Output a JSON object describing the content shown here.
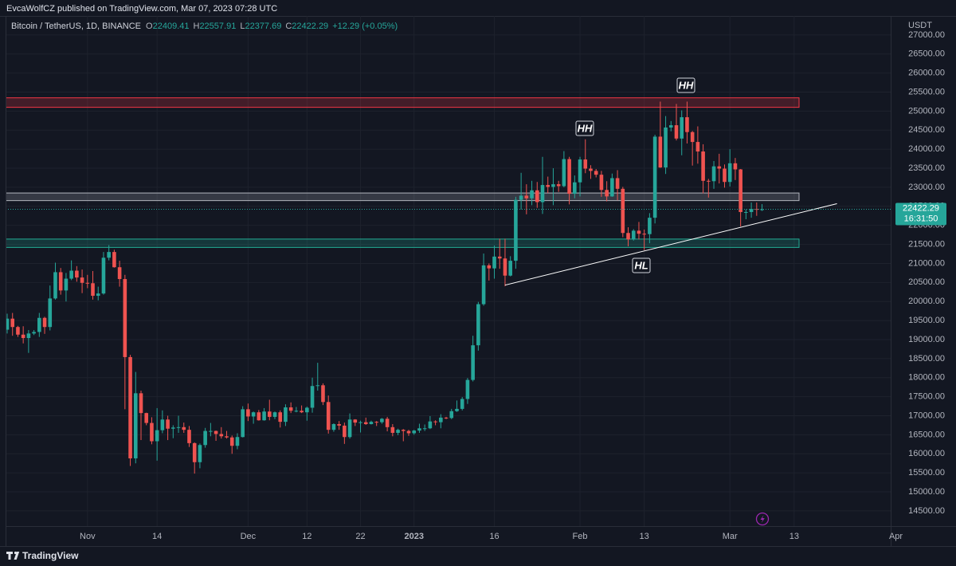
{
  "header": {
    "byline": "EvcaWolfCZ published on TradingView.com, Mar 07, 2023 07:28 UTC"
  },
  "chart_data": {
    "type": "candlestick",
    "symbol": "Bitcoin / TetherUS, 1D, BINANCE",
    "legend": {
      "o": "O",
      "h": "H",
      "l": "L",
      "c": "C",
      "change": "+12.29 (+0.05%)"
    },
    "categories": [
      null,
      null,
      null,
      null,
      null,
      null,
      null,
      null,
      null,
      null,
      null,
      null,
      null,
      null,
      null,
      "Nov",
      null,
      null,
      null,
      null,
      null,
      null,
      null,
      null,
      null,
      null,
      null,
      null,
      "14",
      null,
      null,
      null,
      null,
      null,
      null,
      null,
      null,
      null,
      null,
      null,
      null,
      null,
      null,
      null,
      null,
      "Dec",
      null,
      null,
      null,
      null,
      null,
      null,
      null,
      null,
      null,
      null,
      "12",
      null,
      null,
      null,
      null,
      null,
      null,
      null,
      null,
      null,
      "22",
      null,
      null,
      null,
      null,
      null,
      null,
      null,
      null,
      null,
      "2023",
      null,
      null,
      null,
      null,
      null,
      null,
      null,
      null,
      null,
      null,
      null,
      null,
      null,
      null,
      "16",
      null,
      null,
      null,
      null,
      null,
      null,
      null,
      null,
      null,
      null,
      null,
      null,
      null,
      null,
      null,
      "Feb",
      null,
      null,
      null,
      null,
      null,
      null,
      null,
      null,
      null,
      null,
      null,
      "13",
      null,
      null,
      null,
      null,
      null,
      null,
      null,
      null,
      null,
      null,
      null,
      null,
      null,
      null,
      null,
      "Mar",
      null,
      null,
      null,
      null,
      null,
      null,
      null,
      null,
      null,
      null,
      null,
      "13",
      null,
      null,
      null,
      null,
      null,
      null,
      null,
      null,
      null,
      null,
      null,
      null,
      null,
      null,
      null,
      null,
      null,
      null,
      "Apr"
    ],
    "open": [
      19260,
      19550,
      19330,
      19130,
      19040,
      19160,
      19200,
      19570,
      19330,
      20080,
      20770,
      20290,
      20600,
      20810,
      20630,
      20490,
      20480,
      20150,
      20210,
      21150,
      21300,
      20900,
      20590,
      18540,
      15880,
      17590,
      17070,
      16810,
      16330,
      16620,
      16900,
      16660,
      16690,
      16700,
      16630,
      16280,
      15780,
      16230,
      16600,
      16600,
      16520,
      16460,
      16430,
      16210,
      16440,
      17170,
      16980,
      17090,
      16880,
      17110,
      16970,
      17090,
      16840,
      17220,
      17130,
      17130,
      17090,
      17210,
      17780,
      17800,
      17360,
      16630,
      16780,
      16740,
      16440,
      16900,
      16820,
      16830,
      16780,
      16840,
      16830,
      16920,
      16700,
      16550,
      16630,
      16600,
      16540,
      16610,
      16670,
      16670,
      16850,
      16830,
      16950,
      16940,
      17120,
      17180,
      17440,
      17940,
      18850,
      19930,
      20950,
      20870,
      21180,
      21130,
      20680,
      21070,
      22670,
      22780,
      22710,
      22920,
      22610,
      23060,
      23010,
      23080,
      23030,
      23740,
      22830,
      23130,
      23730,
      23490,
      23430,
      23330,
      22930,
      22760,
      23240,
      22960,
      21800,
      21630,
      21860,
      21780,
      21770,
      22200,
      24330,
      23520,
      24570,
      24630,
      24280,
      24840,
      24450,
      24190,
      23940,
      23170,
      23160,
      23550,
      23490,
      23140,
      23630,
      23470,
      22350,
      22350,
      22430,
      22409.41,
      null,
      null,
      null,
      null,
      null,
      null,
      null,
      null,
      null,
      null,
      null,
      null,
      null,
      null,
      null,
      null,
      null,
      null,
      null,
      null,
      null,
      null,
      null,
      null,
      null
    ],
    "high": [
      19680,
      19700,
      19360,
      19350,
      19250,
      19250,
      19700,
      19600,
      20420,
      21020,
      20880,
      20750,
      21080,
      20930,
      20840,
      20700,
      20800,
      20390,
      21300,
      21480,
      21360,
      21070,
      20700,
      18600,
      18150,
      17660,
      17080,
      16960,
      17200,
      17140,
      17000,
      16750,
      17000,
      16820,
      16730,
      16300,
      16270,
      16680,
      16810,
      16610,
      16700,
      16600,
      16480,
      16540,
      17250,
      17320,
      17110,
      17150,
      17200,
      17420,
      17110,
      17140,
      17300,
      17350,
      17230,
      17270,
      17240,
      18000,
      18390,
      17850,
      17530,
      16800,
      16860,
      16820,
      17060,
      16910,
      16870,
      16950,
      16870,
      16860,
      16940,
      16970,
      16780,
      16660,
      16650,
      16630,
      16630,
      16790,
      16770,
      16990,
      16880,
      17040,
      16970,
      17180,
      17400,
      17490,
      17990,
      19100,
      19990,
      21260,
      21000,
      21470,
      21650,
      21650,
      21190,
      22750,
      23380,
      23080,
      23170,
      23140,
      23800,
      23280,
      23500,
      23170,
      23950,
      23800,
      23310,
      23800,
      24260,
      23580,
      23480,
      23430,
      23160,
      23360,
      23450,
      23010,
      21950,
      21900,
      22090,
      21890,
      22320,
      24380,
      25250,
      24870,
      24740,
      25190,
      25020,
      25250,
      24480,
      24600,
      24130,
      23220,
      23690,
      23880,
      23600,
      24000,
      23770,
      23480,
      22420,
      22600,
      22600,
      22557.91,
      null,
      null,
      null,
      null,
      null,
      null,
      null,
      null,
      null,
      null,
      null,
      null,
      null,
      null,
      null,
      null,
      null,
      null,
      null,
      null,
      null,
      null,
      null,
      null,
      null
    ],
    "low": [
      19160,
      19100,
      19070,
      18900,
      18650,
      19120,
      19070,
      19150,
      19240,
      20050,
      20180,
      20000,
      20560,
      20520,
      20220,
      20350,
      20050,
      20030,
      20180,
      21080,
      20890,
      20390,
      17170,
      15680,
      15750,
      16360,
      16750,
      16250,
      15820,
      16540,
      16360,
      16410,
      16550,
      16550,
      16180,
      15480,
      15620,
      16160,
      16460,
      16340,
      16400,
      16400,
      16000,
      16120,
      16430,
      16860,
      16790,
      16870,
      16870,
      16880,
      16910,
      16690,
      16730,
      17070,
      17090,
      17070,
      16870,
      17080,
      17660,
      17280,
      16530,
      16580,
      16630,
      16260,
      16400,
      16730,
      16560,
      16760,
      16770,
      16730,
      16790,
      16590,
      16460,
      16490,
      16330,
      16470,
      16500,
      16550,
      16600,
      16650,
      16750,
      16670,
      16910,
      16910,
      17100,
      17140,
      17310,
      17900,
      18710,
      19890,
      20550,
      20600,
      20860,
      20400,
      20660,
      20860,
      22420,
      22290,
      22530,
      22460,
      22300,
      22850,
      22530,
      22880,
      23000,
      22550,
      22710,
      22760,
      23370,
      23220,
      23260,
      22750,
      22630,
      22750,
      22660,
      21690,
      21450,
      21600,
      21630,
      21350,
      21530,
      22050,
      23510,
      23350,
      24470,
      24230,
      23840,
      24150,
      23570,
      23620,
      22840,
      22730,
      22960,
      23100,
      22990,
      23020,
      23190,
      21970,
      22160,
      22200,
      22250,
      22377.69,
      null,
      null,
      null,
      null,
      null,
      null,
      null,
      null,
      null,
      null,
      null,
      null,
      null,
      null,
      null,
      null,
      null,
      null,
      null,
      null,
      null,
      null,
      null,
      null,
      null
    ],
    "close": [
      19550,
      19330,
      19130,
      19040,
      19160,
      19200,
      19570,
      19330,
      20080,
      20770,
      20290,
      20600,
      20810,
      20630,
      20490,
      20480,
      20150,
      20210,
      21150,
      21300,
      20900,
      20590,
      18540,
      15880,
      17590,
      17070,
      16810,
      16330,
      16620,
      16900,
      16660,
      16690,
      16700,
      16630,
      16280,
      15780,
      16230,
      16600,
      16600,
      16520,
      16460,
      16430,
      16210,
      16440,
      17170,
      16980,
      17090,
      16880,
      17110,
      16970,
      17090,
      16840,
      17220,
      17130,
      17130,
      17090,
      17210,
      17780,
      17800,
      17360,
      16630,
      16780,
      16740,
      16440,
      16900,
      16820,
      16830,
      16780,
      16840,
      16830,
      16920,
      16700,
      16550,
      16630,
      16600,
      16540,
      16610,
      16670,
      16670,
      16850,
      16830,
      16950,
      16940,
      17120,
      17180,
      17440,
      17940,
      18850,
      19930,
      20950,
      20870,
      21180,
      21130,
      20680,
      21070,
      22670,
      22780,
      22710,
      22920,
      22610,
      23060,
      23010,
      23080,
      23030,
      23740,
      22830,
      23130,
      23730,
      23490,
      23430,
      23330,
      22930,
      22760,
      23240,
      22960,
      21800,
      21630,
      21860,
      21780,
      21770,
      22200,
      24330,
      23520,
      24570,
      24630,
      24280,
      24840,
      24450,
      24190,
      23940,
      23170,
      23160,
      23550,
      23490,
      23140,
      23630,
      23470,
      22350,
      22350,
      22430,
      22410,
      22422.29,
      null,
      null,
      null,
      null,
      null,
      null,
      null,
      null,
      null,
      null,
      null,
      null,
      null,
      null,
      null,
      null,
      null,
      null,
      null,
      null,
      null,
      null,
      null,
      null,
      null
    ],
    "up_color": "#26a69a",
    "down_color": "#ef5350",
    "ylim": [
      14100,
      27500
    ],
    "yticks": [
      {
        "value": 14500,
        "label": "14500.00"
      },
      {
        "value": 15000,
        "label": "15000.00"
      },
      {
        "value": 15500,
        "label": "15500.00"
      },
      {
        "value": 16000,
        "label": "16000.00"
      },
      {
        "value": 16500,
        "label": "16500.00"
      },
      {
        "value": 17000,
        "label": "17000.00"
      },
      {
        "value": 17500,
        "label": "17500.00"
      },
      {
        "value": 18000,
        "label": "18000.00"
      },
      {
        "value": 18500,
        "label": "18500.00"
      },
      {
        "value": 19000,
        "label": "19000.00"
      },
      {
        "value": 19500,
        "label": "19500.00"
      },
      {
        "value": 20000,
        "label": "20000.00"
      },
      {
        "value": 20500,
        "label": "20500.00"
      },
      {
        "value": 21000,
        "label": "21000.00"
      },
      {
        "value": 21500,
        "label": "21500.00"
      },
      {
        "value": 22000,
        "label": "22000.00"
      },
      {
        "value": 22500,
        "label": "22500.00"
      },
      {
        "value": 23000,
        "label": "23000.00"
      },
      {
        "value": 23500,
        "label": "23500.00"
      },
      {
        "value": 24000,
        "label": "24000.00"
      },
      {
        "value": 24500,
        "label": "24500.00"
      },
      {
        "value": 25000,
        "label": "25000.00"
      },
      {
        "value": 25500,
        "label": "25500.00"
      },
      {
        "value": 26000,
        "label": "26000.00"
      },
      {
        "value": 26500,
        "label": "26500.00"
      },
      {
        "value": 27000,
        "label": "27000.00"
      }
    ],
    "y_unit": "USDT",
    "grid": true,
    "countdown": "16:31:50",
    "zones": [
      {
        "from": 25100,
        "to": 25350,
        "color": "#f23645"
      },
      {
        "from": 22650,
        "to": 22850,
        "color": "#b2b5be"
      },
      {
        "from": 21420,
        "to": 21640,
        "color": "#22ab94"
      }
    ],
    "trendline": {
      "start": 20430,
      "end": 22570,
      "color": "#ffffff"
    },
    "annotations": [
      "HH",
      "HH",
      "HL"
    ]
  },
  "footer": {
    "brand": "TradingView"
  }
}
